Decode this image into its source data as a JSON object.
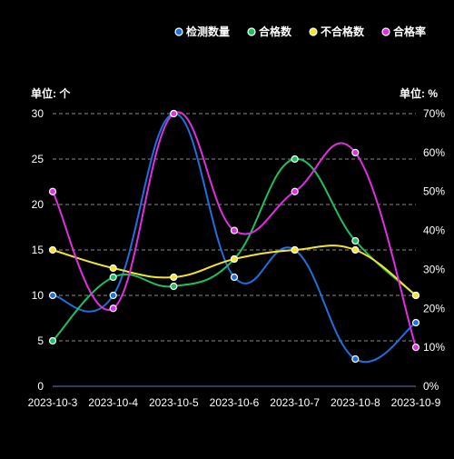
{
  "chart_data": {
    "type": "line",
    "categories": [
      "2023-10-3",
      "2023-10-4",
      "2023-10-5",
      "2023-10-6",
      "2023-10-7",
      "2023-10-8",
      "2023-10-9"
    ],
    "left_axis": {
      "unit_label": "单位: 个",
      "ylim": [
        0,
        30
      ],
      "ticks": [
        "0",
        "5",
        "10",
        "15",
        "20",
        "25",
        "30"
      ]
    },
    "right_axis": {
      "unit_label": "单位: %",
      "ylim": [
        0,
        70
      ],
      "ticks": [
        "0%",
        "10%",
        "20%",
        "30%",
        "40%",
        "50%",
        "60%",
        "70%"
      ]
    },
    "grid": true,
    "legend_position": "top-right",
    "series": [
      {
        "name": "检测数量",
        "axis": "left",
        "color": "#1f6fe0",
        "values": [
          10,
          10,
          30,
          12,
          15,
          3,
          7
        ]
      },
      {
        "name": "合格数",
        "axis": "left",
        "color": "#1fbf5f",
        "values": [
          5,
          12,
          11,
          14,
          25,
          16,
          10
        ]
      },
      {
        "name": "不合格数",
        "axis": "left",
        "color": "#f5e52a",
        "values": [
          15,
          13,
          12,
          14,
          15,
          15,
          10
        ]
      },
      {
        "name": "合格率",
        "axis": "right",
        "color": "#e02ee0",
        "values": [
          50,
          20,
          70,
          40,
          50,
          60,
          10
        ]
      }
    ]
  }
}
